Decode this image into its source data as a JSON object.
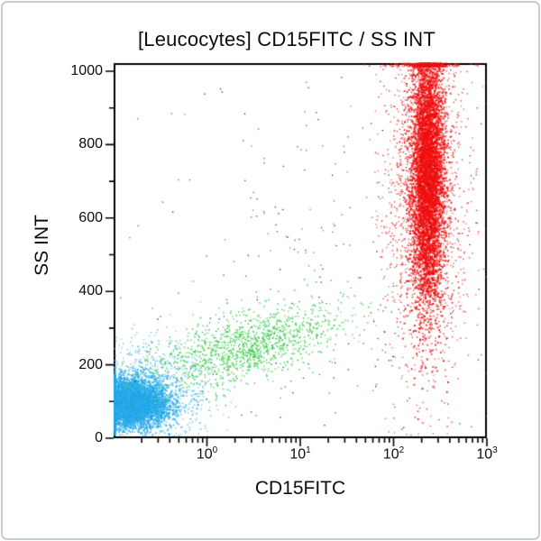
{
  "window": {
    "background_color": "#ffffff",
    "border_color": "#c8cccb"
  },
  "chart_data": {
    "type": "scatter",
    "subtype": "flow-cytometry-dot-plot",
    "title": "[Leucocytes] CD15FITC / SS INT",
    "xlabel": "CD15FITC",
    "ylabel": "SS INT",
    "axis_color": "#000000",
    "grid": "off",
    "legend": "none",
    "x_scale": "log",
    "x_range_decades": [
      -1,
      3
    ],
    "x_major_ticks": [
      {
        "base": "10",
        "exp": "0"
      },
      {
        "base": "10",
        "exp": "1"
      },
      {
        "base": "10",
        "exp": "2"
      },
      {
        "base": "10",
        "exp": "3"
      }
    ],
    "x_minor_multipliers": [
      2,
      3,
      4,
      5,
      6,
      7,
      8,
      9
    ],
    "y_scale": "linear",
    "y_range": [
      0,
      1023
    ],
    "y_major_ticks": [
      0,
      200,
      400,
      600,
      800,
      1000
    ],
    "y_minor_ticks": [
      100,
      300,
      500,
      700,
      900
    ],
    "seed": 1337,
    "populations": [
      {
        "name": "lymphocytes-core",
        "color": "#1FA6E8",
        "n": 4600,
        "logx_mean": -0.85,
        "logx_sd": 0.22,
        "ss_base": 95,
        "ss_slope": 0,
        "ss_sd": 33,
        "size": 1.9,
        "clip": "clamp"
      },
      {
        "name": "lymphocytes-fringe",
        "color": "#3FB2EC",
        "n": 1400,
        "logx_mean": -0.7,
        "logx_sd": 0.34,
        "ss_base": 110,
        "ss_slope": 0,
        "ss_sd": 70,
        "size": 1.4,
        "clip": "discard"
      },
      {
        "name": "monocytes-band",
        "color": "#2BC83C",
        "n": 1300,
        "logx_mean": 0.45,
        "logx_sd": 0.5,
        "ss_base": 225,
        "ss_slope": 62,
        "ss_sd": 45,
        "size": 1.5,
        "clip": "discard"
      },
      {
        "name": "granulocytes-core",
        "color": "#F20D0D",
        "n": 5200,
        "logx_mean": 2.37,
        "logx_sd": 0.09,
        "ss_base": 720,
        "ss_slope": 0,
        "ss_sd": 185,
        "size": 1.9,
        "clip": "clamp"
      },
      {
        "name": "granulocytes-halo",
        "color": "#E11818",
        "n": 1900,
        "logx_mean": 2.33,
        "logx_sd": 0.23,
        "ss_base": 690,
        "ss_slope": 0,
        "ss_sd": 250,
        "size": 1.4,
        "clip": "clamp"
      },
      {
        "name": "debris-dark",
        "color": "#1C2336",
        "n": 290,
        "logx_mean": 1.2,
        "logx_sd": 1.1,
        "ss_base": 430,
        "ss_slope": 0,
        "ss_sd": 300,
        "size": 1.3,
        "clip": "discard"
      }
    ]
  }
}
